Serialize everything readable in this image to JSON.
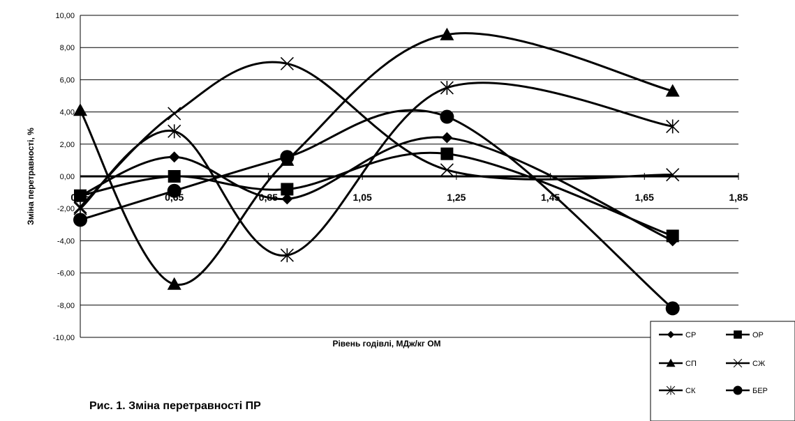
{
  "chart_data": {
    "type": "line",
    "xlabel": "Рівень годівлі, МДж/кг ОМ",
    "ylabel": "Зміна перетравності, %",
    "caption": "Рис. 1. Зміна перетравності ПР",
    "xlim": [
      0.45,
      1.85
    ],
    "ylim": [
      -10,
      10
    ],
    "x_ticks": [
      "0,45",
      "0,65",
      "0,85",
      "1,05",
      "1,25",
      "1,45",
      "1,65",
      "1,85"
    ],
    "y_ticks": [
      "10,00",
      "8,00",
      "6,00",
      "4,00",
      "2,00",
      "0,00",
      "-2,00",
      "-4,00",
      "-6,00",
      "-8,00",
      "-10,00"
    ],
    "grid": "horizontal",
    "legend_position": "bottom-right",
    "series": [
      {
        "name": "СР",
        "marker": "diamond",
        "x": [
          0.45,
          0.65,
          0.89,
          1.23,
          1.71
        ],
        "y": [
          -1.2,
          1.2,
          -1.4,
          2.4,
          -4.0
        ]
      },
      {
        "name": "ОР",
        "marker": "square",
        "x": [
          0.45,
          0.65,
          0.89,
          1.23,
          1.71
        ],
        "y": [
          -1.2,
          0.0,
          -0.8,
          1.4,
          -3.7
        ]
      },
      {
        "name": "СП",
        "marker": "triangle",
        "x": [
          0.45,
          0.65,
          0.89,
          1.23,
          1.71
        ],
        "y": [
          4.1,
          -6.7,
          1.0,
          8.8,
          5.3
        ]
      },
      {
        "name": "СЖ",
        "marker": "x",
        "x": [
          0.45,
          0.65,
          0.89,
          1.23,
          1.71
        ],
        "y": [
          -1.9,
          3.9,
          7.0,
          0.4,
          0.1
        ]
      },
      {
        "name": "СК",
        "marker": "star",
        "x": [
          0.45,
          0.65,
          0.89,
          1.23,
          1.71
        ],
        "y": [
          -2.0,
          2.8,
          -4.9,
          5.5,
          3.1
        ]
      },
      {
        "name": "БЕР",
        "marker": "circle",
        "x": [
          0.45,
          0.65,
          0.89,
          1.23,
          1.71
        ],
        "y": [
          -2.7,
          -0.9,
          1.2,
          3.7,
          -8.2
        ]
      }
    ]
  }
}
